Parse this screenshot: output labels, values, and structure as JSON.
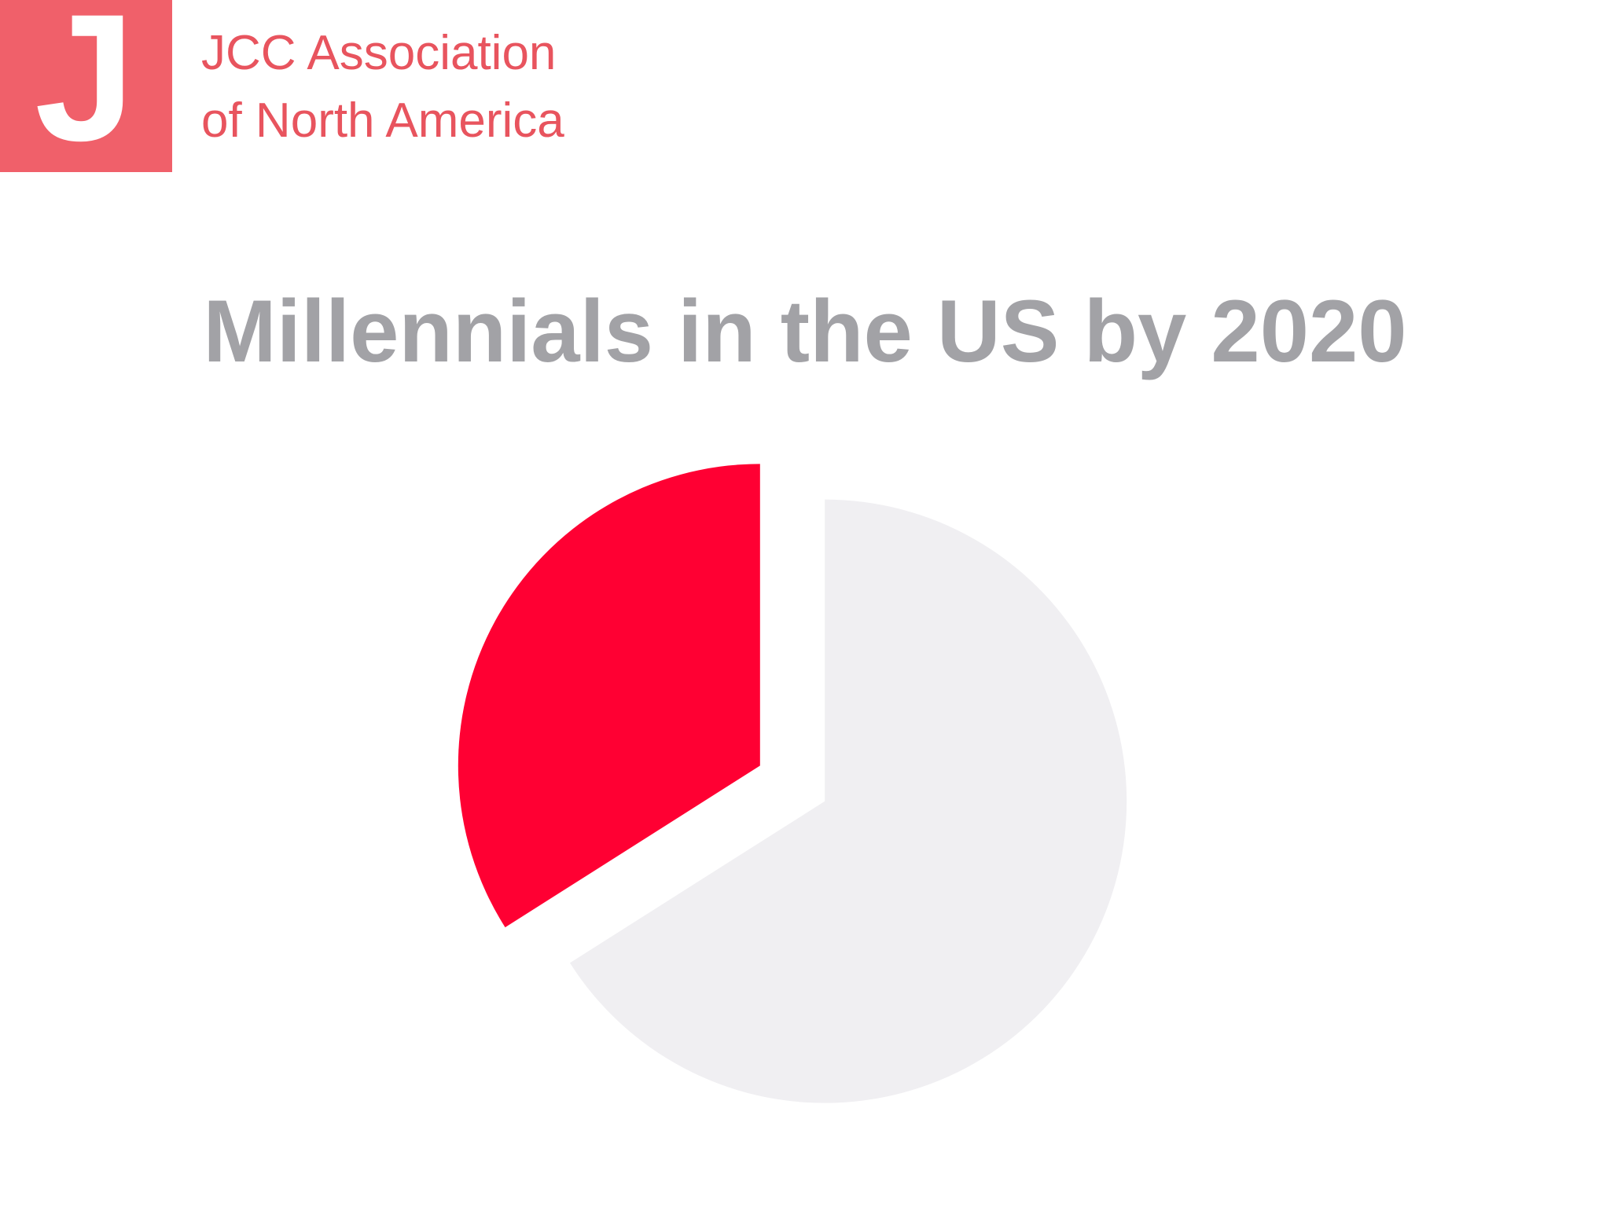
{
  "logo": {
    "mark": "J",
    "line1": "JCC Association",
    "line2": "of North America"
  },
  "chart_data": {
    "type": "pie",
    "title": "Millennials in the US by 2020",
    "values": [
      34,
      66
    ],
    "colors": [
      "#ff0033",
      "#f0eff2"
    ]
  }
}
